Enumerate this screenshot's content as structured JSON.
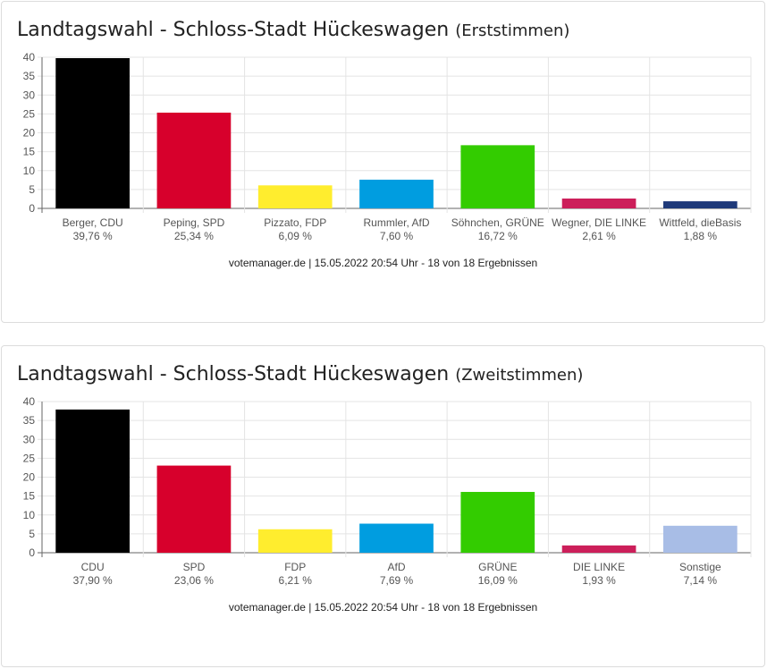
{
  "cards": [
    {
      "title": "Landtagswahl - Schloss-Stadt Hückeswagen",
      "subtitle": "(Erststimmen)",
      "footer": "votemanager.de | 15.05.2022 20:54 Uhr - 18 von 18 Ergebnissen"
    },
    {
      "title": "Landtagswahl - Schloss-Stadt Hückeswagen",
      "subtitle": "(Zweitstimmen)",
      "footer": "votemanager.de | 15.05.2022 20:54 Uhr - 18 von 18 Ergebnissen"
    }
  ],
  "chart_data": [
    {
      "type": "bar",
      "categories": [
        "Berger, CDU",
        "Peping, SPD",
        "Pizzato, FDP",
        "Rummler, AfD",
        "Söhnchen, GRÜNE",
        "Wegner, DIE LINKE",
        "Wittfeld, dieBasis"
      ],
      "value_labels": [
        "39,76 %",
        "25,34 %",
        "6,09 %",
        "7,60 %",
        "16,72 %",
        "2,61 %",
        "1,88 %"
      ],
      "values": [
        39.76,
        25.34,
        6.09,
        7.6,
        16.72,
        2.61,
        1.88
      ],
      "colors": [
        "#000000",
        "#d7002c",
        "#ffed2e",
        "#009de0",
        "#33cc00",
        "#cc1f5a",
        "#1f3a7a"
      ],
      "ylim": [
        0,
        40
      ],
      "yticks": [
        0,
        5,
        10,
        15,
        20,
        25,
        30,
        35,
        40
      ],
      "grid": true
    },
    {
      "type": "bar",
      "categories": [
        "CDU",
        "SPD",
        "FDP",
        "AfD",
        "GRÜNE",
        "DIE LINKE",
        "Sonstige"
      ],
      "value_labels": [
        "37,90 %",
        "23,06 %",
        "6,21 %",
        "7,69 %",
        "16,09 %",
        "1,93 %",
        "7,14 %"
      ],
      "values": [
        37.9,
        23.06,
        6.21,
        7.69,
        16.09,
        1.93,
        7.14
      ],
      "colors": [
        "#000000",
        "#d7002c",
        "#ffed2e",
        "#009de0",
        "#33cc00",
        "#cc1f5a",
        "#a8bde6"
      ],
      "ylim": [
        0,
        40
      ],
      "yticks": [
        0,
        5,
        10,
        15,
        20,
        25,
        30,
        35,
        40
      ],
      "grid": true
    }
  ]
}
